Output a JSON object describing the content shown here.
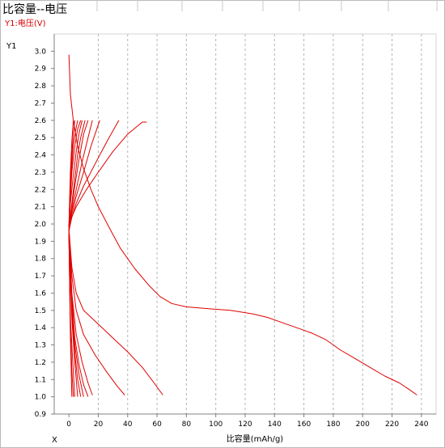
{
  "title": "比容量--电压",
  "subtitle": "Y1:电压(V)",
  "colors": {
    "series": "#e00000",
    "grid": "#b4b4b4",
    "axis": "#808080"
  },
  "chart_data": {
    "type": "line",
    "title": "比容量--电压",
    "xlabel": "比容量(mAh/g)",
    "ylabel": "Y1",
    "x_axis_name": "X",
    "xlim": [
      -10,
      250
    ],
    "ylim": [
      0.9,
      3.1
    ],
    "xticks": [
      0,
      20,
      40,
      60,
      80,
      100,
      120,
      140,
      160,
      180,
      200,
      220,
      240
    ],
    "yticks": [
      "0.9",
      "1.0",
      "1.1",
      "1.2",
      "1.3",
      "1.4",
      "1.5",
      "1.6",
      "1.7",
      "1.8",
      "1.9",
      "2.0",
      "2.1",
      "2.2",
      "2.3",
      "2.4",
      "2.5",
      "2.6",
      "2.7",
      "2.8",
      "2.9",
      "3.0"
    ],
    "grid": {
      "x": true,
      "y": false,
      "style": "dashed"
    },
    "series": [
      {
        "x": [
          0,
          1,
          3,
          6,
          10,
          15,
          20,
          28,
          35,
          45,
          55,
          62,
          70,
          80,
          95,
          110,
          125,
          135,
          145,
          155,
          165,
          175,
          185,
          195,
          205,
          215,
          225,
          232,
          237
        ],
        "y": [
          2.98,
          2.75,
          2.6,
          2.45,
          2.32,
          2.2,
          2.1,
          1.97,
          1.86,
          1.74,
          1.64,
          1.58,
          1.54,
          1.52,
          1.51,
          1.5,
          1.48,
          1.46,
          1.43,
          1.4,
          1.37,
          1.33,
          1.27,
          1.22,
          1.17,
          1.12,
          1.08,
          1.04,
          1.01
        ]
      },
      {
        "x": [
          0,
          2,
          5,
          10,
          20,
          30,
          40,
          50,
          58,
          64
        ],
        "y": [
          1.97,
          1.75,
          1.6,
          1.5,
          1.42,
          1.34,
          1.26,
          1.17,
          1.08,
          1.01
        ]
      },
      {
        "x": [
          0,
          2,
          5,
          10,
          18,
          26,
          33,
          38
        ],
        "y": [
          1.97,
          1.7,
          1.5,
          1.36,
          1.24,
          1.14,
          1.06,
          1.01
        ]
      },
      {
        "x": [
          0,
          2,
          5,
          9,
          13,
          16
        ],
        "y": [
          1.96,
          1.6,
          1.36,
          1.2,
          1.08,
          1.01
        ]
      },
      {
        "x": [
          0,
          2,
          4,
          7,
          10,
          13
        ],
        "y": [
          1.95,
          1.58,
          1.34,
          1.18,
          1.07,
          1.0
        ]
      },
      {
        "x": [
          0,
          2,
          4,
          7,
          10
        ],
        "y": [
          1.95,
          1.55,
          1.3,
          1.12,
          1.0
        ]
      },
      {
        "x": [
          0,
          2,
          4,
          6,
          8
        ],
        "y": [
          1.94,
          1.5,
          1.25,
          1.1,
          1.0
        ]
      },
      {
        "x": [
          0,
          2,
          4,
          6
        ],
        "y": [
          1.94,
          1.45,
          1.2,
          1.0
        ]
      },
      {
        "x": [
          0,
          1,
          3,
          4
        ],
        "y": [
          1.93,
          1.45,
          1.15,
          1.0
        ]
      },
      {
        "x": [
          0,
          1,
          2,
          3
        ],
        "y": [
          1.93,
          1.4,
          1.15,
          1.0
        ]
      },
      {
        "x": [
          0,
          1,
          2
        ],
        "y": [
          1.92,
          1.35,
          1.0
        ]
      },
      {
        "x": [
          0,
          1,
          5,
          12,
          20,
          30,
          40,
          50,
          53
        ],
        "y": [
          1.96,
          2.02,
          2.1,
          2.2,
          2.3,
          2.42,
          2.52,
          2.59,
          2.59
        ]
      },
      {
        "x": [
          0,
          2,
          5,
          10,
          18,
          26,
          34
        ],
        "y": [
          1.96,
          2.04,
          2.12,
          2.22,
          2.35,
          2.48,
          2.6
        ]
      },
      {
        "x": [
          0,
          2,
          5,
          10,
          15,
          21
        ],
        "y": [
          1.96,
          2.06,
          2.16,
          2.3,
          2.45,
          2.6
        ]
      },
      {
        "x": [
          0,
          2,
          5,
          9,
          13,
          16
        ],
        "y": [
          1.97,
          2.08,
          2.2,
          2.36,
          2.5,
          2.6
        ]
      },
      {
        "x": [
          0,
          2,
          4,
          7,
          10,
          13
        ],
        "y": [
          1.97,
          2.1,
          2.22,
          2.38,
          2.52,
          2.6
        ]
      },
      {
        "x": [
          0,
          2,
          4,
          6,
          8,
          11
        ],
        "y": [
          1.97,
          2.12,
          2.26,
          2.4,
          2.5,
          2.6
        ]
      },
      {
        "x": [
          0,
          1,
          3,
          5,
          7,
          9
        ],
        "y": [
          1.98,
          2.12,
          2.28,
          2.42,
          2.53,
          2.6
        ]
      },
      {
        "x": [
          0,
          1,
          2,
          4,
          6,
          8
        ],
        "y": [
          1.98,
          2.15,
          2.3,
          2.45,
          2.55,
          2.6
        ]
      },
      {
        "x": [
          0,
          1,
          2,
          3,
          5,
          6
        ],
        "y": [
          1.98,
          2.2,
          2.34,
          2.46,
          2.56,
          2.6
        ]
      },
      {
        "x": [
          0,
          1,
          2,
          3,
          4
        ],
        "y": [
          1.98,
          2.25,
          2.4,
          2.52,
          2.6
        ]
      },
      {
        "x": [
          0,
          1,
          2,
          3
        ],
        "y": [
          1.99,
          2.3,
          2.48,
          2.6
        ]
      }
    ]
  }
}
